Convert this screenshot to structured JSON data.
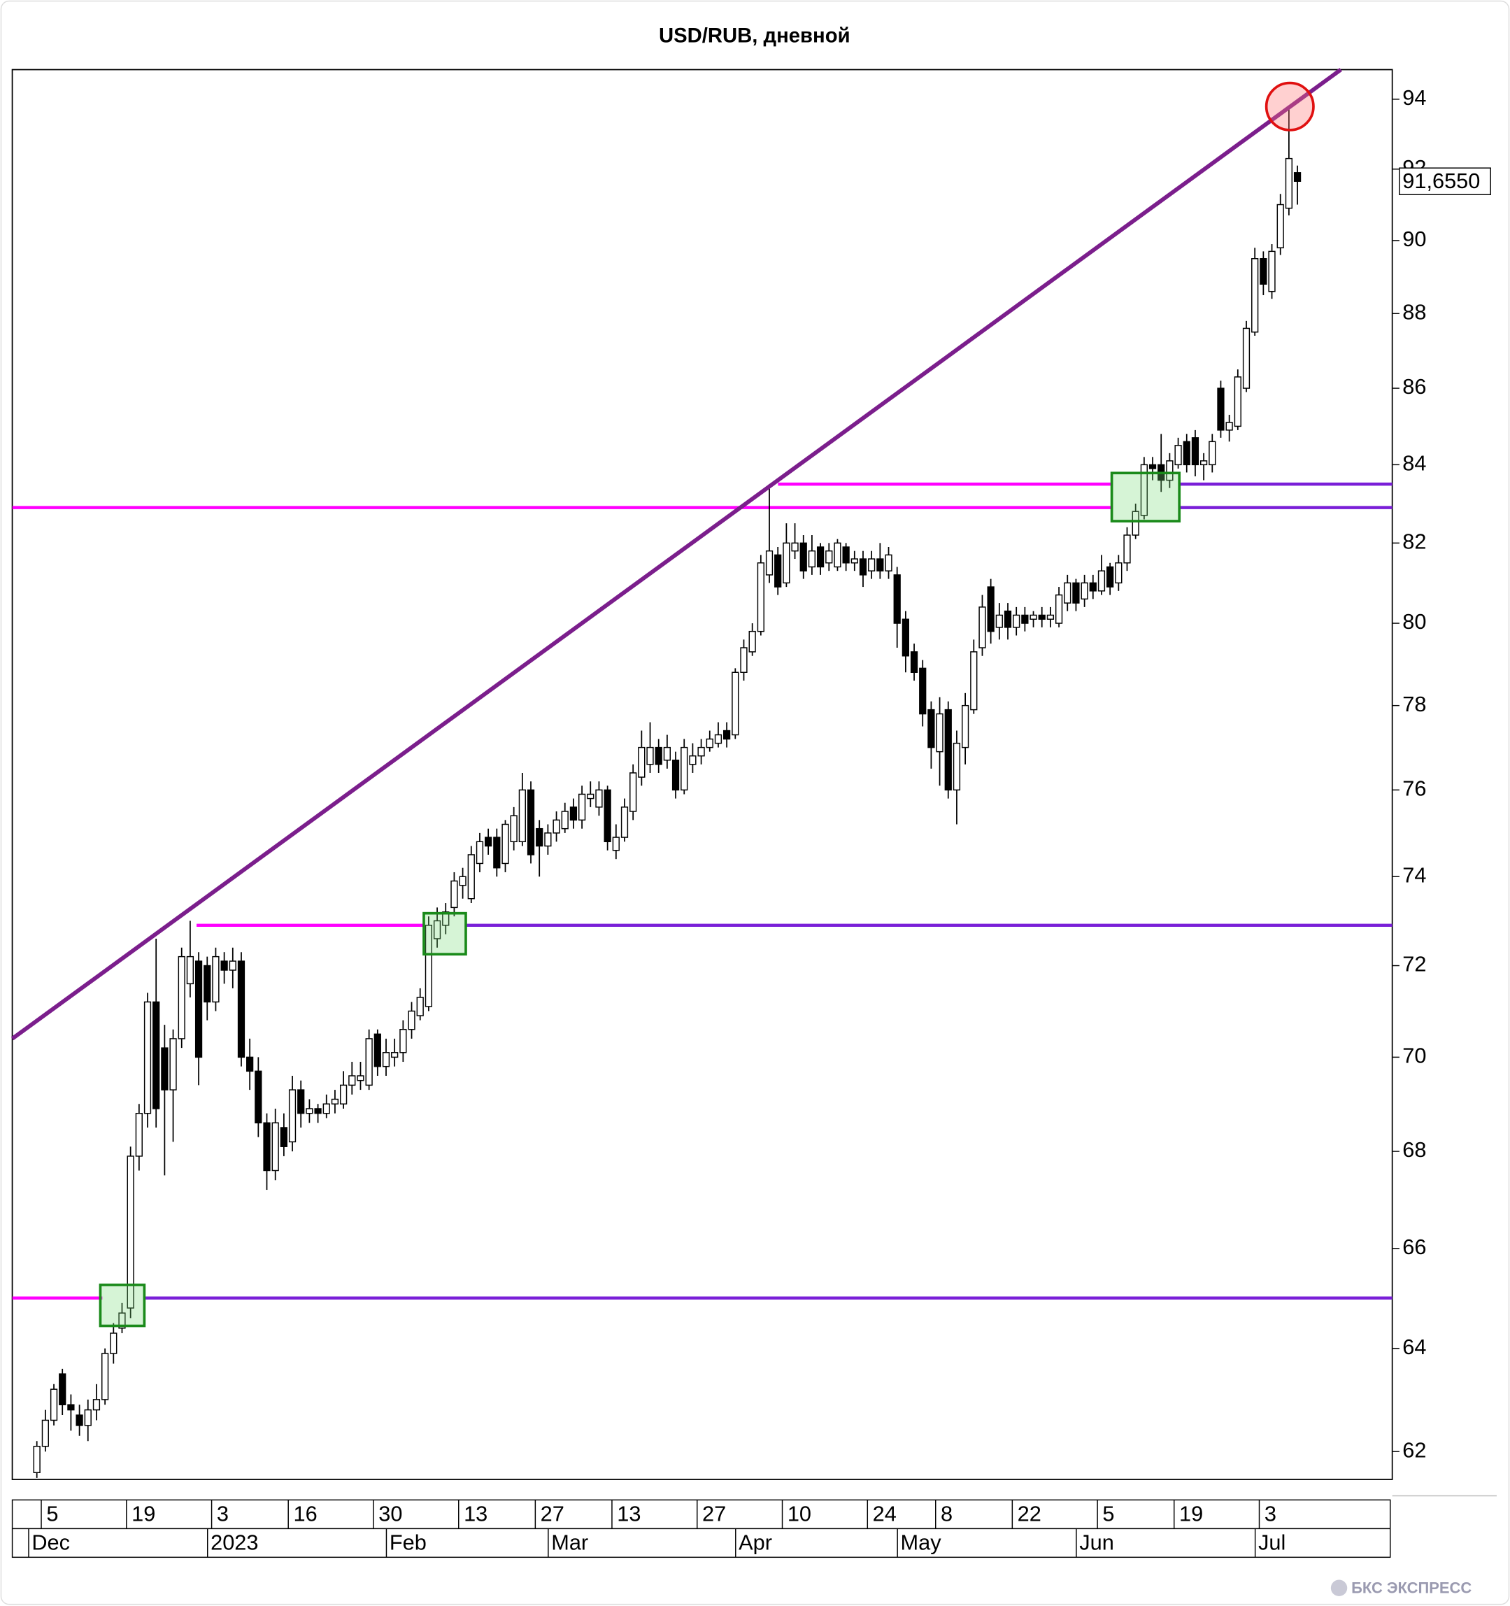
{
  "chart_data": {
    "type": "candlestick",
    "title": "USD/RUB, дневной",
    "categories": [
      null,
      "5",
      null,
      null,
      null,
      null,
      null,
      null,
      null,
      null,
      null,
      "19",
      null,
      null,
      null,
      null,
      null,
      null,
      null,
      null,
      null,
      "3",
      null,
      null,
      null,
      null,
      null,
      null,
      null,
      null,
      "16",
      null,
      null,
      null,
      null,
      null,
      null,
      null,
      null,
      null,
      "30",
      null,
      null,
      null,
      null,
      null,
      null,
      null,
      null,
      null,
      "13",
      null,
      null,
      null,
      null,
      null,
      null,
      null,
      null,
      "27",
      null,
      null,
      null,
      null,
      null,
      null,
      null,
      null,
      "13",
      null,
      null,
      null,
      null,
      null,
      null,
      null,
      null,
      null,
      "27",
      null,
      null,
      null,
      null,
      null,
      null,
      null,
      null,
      null,
      "10",
      null,
      null,
      null,
      null,
      null,
      null,
      null,
      null,
      null,
      "24",
      null,
      null,
      null,
      null,
      null,
      null,
      null,
      "8",
      null,
      null,
      null,
      null,
      null,
      null,
      null,
      null,
      "22",
      null,
      null,
      null,
      null,
      null,
      null,
      null,
      null,
      null,
      "5",
      null,
      null,
      null,
      null,
      null,
      null,
      null,
      null,
      "19",
      null,
      null,
      null,
      null,
      null,
      null,
      null,
      null,
      null,
      "3",
      null,
      null,
      null,
      null
    ],
    "categories2": [
      "Dec",
      null,
      null,
      null,
      null,
      null,
      null,
      null,
      null,
      null,
      null,
      null,
      null,
      null,
      null,
      null,
      null,
      null,
      null,
      null,
      null,
      "2023",
      null,
      null,
      null,
      null,
      null,
      null,
      null,
      null,
      null,
      null,
      null,
      null,
      null,
      null,
      null,
      null,
      null,
      null,
      null,
      null,
      "Feb",
      null,
      null,
      null,
      null,
      null,
      null,
      null,
      null,
      null,
      null,
      null,
      null,
      null,
      null,
      null,
      null,
      null,
      null,
      "Mar",
      null,
      null,
      null,
      null,
      null,
      null,
      null,
      null,
      null,
      null,
      null,
      null,
      null,
      null,
      null,
      null,
      null,
      null,
      null,
      null,
      null,
      "Apr",
      null,
      null,
      null,
      null,
      null,
      null,
      null,
      null,
      null,
      null,
      null,
      null,
      null,
      null,
      null,
      null,
      null,
      null,
      "May",
      null,
      null,
      null,
      null,
      null,
      null,
      null,
      null,
      null,
      null,
      null,
      null,
      null,
      null,
      null,
      null,
      null,
      null,
      null,
      null,
      "Jun",
      null,
      null,
      null,
      null,
      null,
      null,
      null,
      null,
      null,
      null,
      null,
      null,
      null,
      null,
      null,
      null,
      null,
      null,
      null,
      null,
      "Jul",
      null,
      null,
      null,
      null
    ],
    "open": [
      61.6,
      62.1,
      62.6,
      63.5,
      62.9,
      62.7,
      62.5,
      62.8,
      63.0,
      63.9,
      64.4,
      64.8,
      67.9,
      68.8,
      71.2,
      70.2,
      69.3,
      70.4,
      71.6,
      72.1,
      72.0,
      71.2,
      72.1,
      71.9,
      72.1,
      70.0,
      69.7,
      68.6,
      67.6,
      68.5,
      68.2,
      69.3,
      68.8,
      68.9,
      68.8,
      69.0,
      69.0,
      69.4,
      69.5,
      69.4,
      70.5,
      69.8,
      70.0,
      70.1,
      70.6,
      70.9,
      71.1,
      72.6,
      72.9,
      73.3,
      73.8,
      73.5,
      74.3,
      74.9,
      74.9,
      74.3,
      74.8,
      74.8,
      76.0,
      75.1,
      74.7,
      75.0,
      75.1,
      75.6,
      75.3,
      75.8,
      75.6,
      76.0,
      74.6,
      74.9,
      75.5,
      76.3,
      76.6,
      77.0,
      76.7,
      76.7,
      76.0,
      76.6,
      76.8,
      77.0,
      77.1,
      77.4,
      77.3,
      78.8,
      79.3,
      79.8,
      81.2,
      81.7,
      81.0,
      81.8,
      82.0,
      81.4,
      81.9,
      81.5,
      81.4,
      81.9,
      81.5,
      81.6,
      81.3,
      81.6,
      81.3,
      81.2,
      80.1,
      79.3,
      78.9,
      77.9,
      76.9,
      77.9,
      76.0,
      77.0,
      77.9,
      79.4,
      80.9,
      79.9,
      80.3,
      79.9,
      80.2,
      80.1,
      80.2,
      80.1,
      80.0,
      80.5,
      81.0,
      80.6,
      81.0,
      80.8,
      81.4,
      81.0,
      81.5,
      82.2,
      82.7,
      84.0,
      84.0,
      83.6,
      84.0,
      84.6,
      84.7,
      84.0,
      84.0,
      86.0,
      84.9,
      85.0,
      86.0,
      87.5,
      89.5,
      88.6,
      89.8,
      90.9,
      91.9
    ],
    "high": [
      62.2,
      62.8,
      63.3,
      63.6,
      63.1,
      62.9,
      63.0,
      63.3,
      64.0,
      64.5,
      64.9,
      68.1,
      69.0,
      71.4,
      72.6,
      70.7,
      70.6,
      72.4,
      73.0,
      72.3,
      72.2,
      72.4,
      72.3,
      72.4,
      72.3,
      70.4,
      70.0,
      68.8,
      68.9,
      68.8,
      69.6,
      69.5,
      69.1,
      69.0,
      69.2,
      69.3,
      69.7,
      69.9,
      69.9,
      70.6,
      70.6,
      70.4,
      70.4,
      70.8,
      71.2,
      71.5,
      73.1,
      73.3,
      73.4,
      74.1,
      74.2,
      74.7,
      75.0,
      75.1,
      75.1,
      75.3,
      75.6,
      76.4,
      76.2,
      75.3,
      75.2,
      75.5,
      75.7,
      75.8,
      76.1,
      76.2,
      76.2,
      76.1,
      75.2,
      75.8,
      76.6,
      77.4,
      77.6,
      77.2,
      77.3,
      76.9,
      77.2,
      77.1,
      77.2,
      77.4,
      77.6,
      77.6,
      78.9,
      79.6,
      80.0,
      81.7,
      83.5,
      81.9,
      82.5,
      82.5,
      82.2,
      82.2,
      82.0,
      82.0,
      82.1,
      82.0,
      81.8,
      81.8,
      81.8,
      82.0,
      81.9,
      81.4,
      80.3,
      79.5,
      79.1,
      78.1,
      78.2,
      78.1,
      77.4,
      78.3,
      79.6,
      80.7,
      81.1,
      80.5,
      80.5,
      80.4,
      80.4,
      80.3,
      80.4,
      80.4,
      80.9,
      81.2,
      81.1,
      81.2,
      81.2,
      81.7,
      81.5,
      81.7,
      82.4,
      83.0,
      84.2,
      84.2,
      84.8,
      84.3,
      84.7,
      84.8,
      84.9,
      84.3,
      84.8,
      86.2,
      85.3,
      86.5,
      87.8,
      89.8,
      89.7,
      89.9,
      91.3,
      93.8,
      92.1
    ],
    "low": [
      61.5,
      62.0,
      62.5,
      62.7,
      62.4,
      62.3,
      62.2,
      62.6,
      62.9,
      63.7,
      64.3,
      64.6,
      67.6,
      68.5,
      68.5,
      67.5,
      68.2,
      70.2,
      71.3,
      69.4,
      70.8,
      71.0,
      71.6,
      71.5,
      69.8,
      69.3,
      68.3,
      67.2,
      67.4,
      67.9,
      68.0,
      68.5,
      68.6,
      68.6,
      68.7,
      68.8,
      68.9,
      69.2,
      69.3,
      69.3,
      69.6,
      69.6,
      69.8,
      69.9,
      70.4,
      70.8,
      71.0,
      72.4,
      72.7,
      73.1,
      73.5,
      73.4,
      74.1,
      74.5,
      74.0,
      74.1,
      74.6,
      74.7,
      74.3,
      74.0,
      74.5,
      74.8,
      75.0,
      75.1,
      75.1,
      75.6,
      75.4,
      74.6,
      74.4,
      74.8,
      75.3,
      76.1,
      76.4,
      76.4,
      76.5,
      75.8,
      75.9,
      76.4,
      76.6,
      76.9,
      77.0,
      77.0,
      77.2,
      78.6,
      79.2,
      79.7,
      81.0,
      80.7,
      80.9,
      81.6,
      81.1,
      81.2,
      81.2,
      81.3,
      81.3,
      81.3,
      81.3,
      80.9,
      81.1,
      81.1,
      81.1,
      79.4,
      78.8,
      78.6,
      77.5,
      76.5,
      76.1,
      75.8,
      75.2,
      76.6,
      77.8,
      79.2,
      79.5,
      79.6,
      79.6,
      79.7,
      79.8,
      79.9,
      79.9,
      79.9,
      79.9,
      80.3,
      80.3,
      80.4,
      80.6,
      80.7,
      80.7,
      80.8,
      81.3,
      82.1,
      82.6,
      83.6,
      83.3,
      83.4,
      83.9,
      83.8,
      83.7,
      83.6,
      83.8,
      84.7,
      84.6,
      84.9,
      85.9,
      87.4,
      88.5,
      88.4,
      89.6,
      90.7,
      91.0
    ],
    "close": [
      62.1,
      62.6,
      63.2,
      62.9,
      62.8,
      62.5,
      62.8,
      63.0,
      63.9,
      64.3,
      64.7,
      67.9,
      68.8,
      71.2,
      68.9,
      69.3,
      70.4,
      72.2,
      72.2,
      70.0,
      71.2,
      72.2,
      71.9,
      72.1,
      70.0,
      69.7,
      68.6,
      67.6,
      68.6,
      68.1,
      69.3,
      68.8,
      68.9,
      68.8,
      69.0,
      69.1,
      69.4,
      69.6,
      69.6,
      70.4,
      69.8,
      70.1,
      70.1,
      70.6,
      71.0,
      71.3,
      72.9,
      73.0,
      73.2,
      73.9,
      74.0,
      74.5,
      74.8,
      74.7,
      74.2,
      75.2,
      75.4,
      76.0,
      74.5,
      74.7,
      75.0,
      75.3,
      75.5,
      75.3,
      75.9,
      75.9,
      76.0,
      74.8,
      74.9,
      75.6,
      76.4,
      77.0,
      77.0,
      76.6,
      77.0,
      76.0,
      77.0,
      76.8,
      77.0,
      77.2,
      77.3,
      77.2,
      78.8,
      79.4,
      79.8,
      81.5,
      81.8,
      80.9,
      82.0,
      82.0,
      81.3,
      81.8,
      81.4,
      81.8,
      82.0,
      81.5,
      81.6,
      81.2,
      81.6,
      81.3,
      81.7,
      80.0,
      79.2,
      78.8,
      77.8,
      77.0,
      77.8,
      76.0,
      77.1,
      78.0,
      79.3,
      80.4,
      79.8,
      80.2,
      79.9,
      80.2,
      80.0,
      80.2,
      80.1,
      80.2,
      80.7,
      81.0,
      80.5,
      81.0,
      80.8,
      81.3,
      80.9,
      81.5,
      82.2,
      82.8,
      84.0,
      83.9,
      83.6,
      84.1,
      84.5,
      84.0,
      84.0,
      84.1,
      84.6,
      84.9,
      85.1,
      86.3,
      87.6,
      89.5,
      88.8,
      89.7,
      91.0,
      92.3,
      91.655
    ],
    "ylim": [
      61.47,
      94.86
    ],
    "log": true,
    "yticks": [
      62,
      64,
      66,
      68,
      70,
      72,
      74,
      76,
      78,
      80,
      82,
      84,
      86,
      88,
      90,
      92,
      94
    ],
    "last_price": {
      "value": 91.655,
      "label": "91,6550"
    },
    "levels": [
      65,
      72.9,
      82.9,
      83.5
    ],
    "trendline": {
      "x": [
        -2.88,
        153.1
      ],
      "y": [
        70.4,
        94.86
      ]
    },
    "colors": {
      "up": "#ffffff",
      "down": "#000000",
      "trend": "#7b1e8c",
      "level": "#ff00ff",
      "level_right": "#7a1fd8"
    }
  },
  "footer": "БКС ЭКСПРЕСС"
}
